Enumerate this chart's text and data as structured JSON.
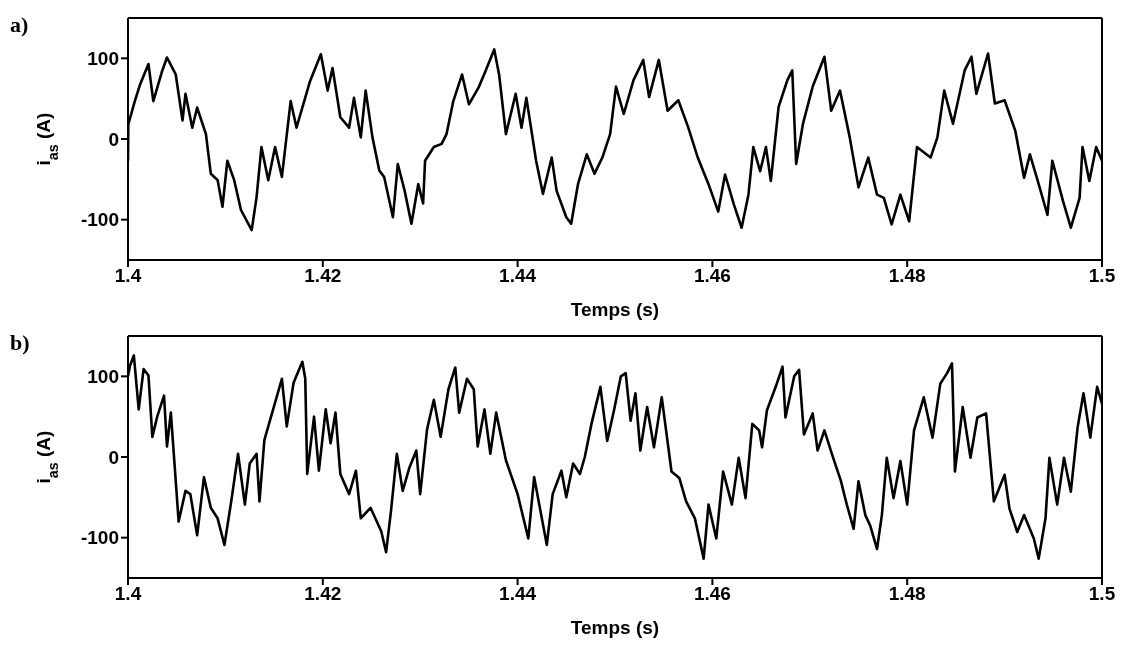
{
  "chart_data": [
    {
      "type": "line",
      "title": "a)",
      "xlabel": "Temps (s)",
      "ylabel": "i$_{as}$ (A)",
      "xlim": [
        1.4,
        1.5
      ],
      "xticks": [
        1.4,
        1.42,
        1.44,
        1.46,
        1.48,
        1.5
      ],
      "ylim": [
        -150,
        150
      ],
      "yticks": [
        -100,
        0,
        100
      ],
      "marker": "none",
      "line_style": "solid",
      "series": [
        {
          "color": "#000000",
          "x": [
            1.4,
            1.40003,
            1.4007,
            1.40125,
            1.4021,
            1.4026,
            1.4035,
            1.404,
            1.4049,
            1.4056,
            1.4059,
            1.4066,
            1.4071,
            1.408,
            1.4085,
            1.4092,
            1.4097,
            1.4102,
            1.4109,
            1.4116,
            1.4127,
            1.4132,
            1.4137,
            1.4144,
            1.4151,
            1.4158,
            1.4167,
            1.4173,
            1.4187,
            1.4198,
            1.4205,
            1.421,
            1.4218,
            1.4227,
            1.4232,
            1.4239,
            1.4244,
            1.4251,
            1.4258,
            1.4263,
            1.4272,
            1.4277,
            1.4284,
            1.4291,
            1.4298,
            1.4303,
            1.4305,
            1.4314,
            1.4322,
            1.4327,
            1.4334,
            1.4343,
            1.435,
            1.436,
            1.4367,
            1.4376,
            1.4381,
            1.4388,
            1.4398,
            1.4404,
            1.4409,
            1.4419,
            1.4426,
            1.4435,
            1.444,
            1.445,
            1.4455,
            1.4462,
            1.4471,
            1.4479,
            1.4487,
            1.4495,
            1.4501,
            1.4509,
            1.4519,
            1.4529,
            1.4535,
            1.4545,
            1.4554,
            1.4565,
            1.4575,
            1.4585,
            1.4596,
            1.4606,
            1.4613,
            1.4622,
            1.463,
            1.4637,
            1.4642,
            1.4649,
            1.4655,
            1.466,
            1.4668,
            1.4677,
            1.4682,
            1.4686,
            1.4693,
            1.4703,
            1.4715,
            1.4722,
            1.4731,
            1.4741,
            1.475,
            1.476,
            1.4769,
            1.4776,
            1.4784,
            1.4793,
            1.4802,
            1.481,
            1.4824,
            1.4831,
            1.4838,
            1.4847,
            1.4859,
            1.4866,
            1.4871,
            1.4883,
            1.489,
            1.49,
            1.4911,
            1.492,
            1.4926,
            1.4935,
            1.4944,
            1.4949,
            1.496,
            1.4968,
            1.4977,
            1.498,
            1.4987,
            1.4994,
            1.5
          ],
          "values": [
            -27,
            18,
            47,
            68,
            93,
            47,
            84,
            101,
            80,
            23,
            56,
            14,
            39,
            6,
            -43,
            -51,
            -84,
            -27,
            -51,
            -88,
            -113,
            -72,
            -10,
            -51,
            -10,
            -47,
            47,
            14,
            72,
            105,
            60,
            88,
            27,
            14,
            51,
            2,
            60,
            2,
            -39,
            -47,
            -97,
            -31,
            -64,
            -105,
            -56,
            -80,
            -27,
            -10,
            -6,
            6,
            47,
            80,
            43,
            64,
            84,
            111,
            80,
            6,
            56,
            14,
            51,
            -27,
            -68,
            -23,
            -64,
            -97,
            -105,
            -56,
            -19,
            -43,
            -23,
            6,
            65,
            31,
            73,
            98,
            52,
            98,
            35,
            48,
            15,
            -23,
            -56,
            -90,
            -44,
            -81,
            -110,
            -69,
            -10,
            -40,
            -10,
            -52,
            40,
            73,
            85,
            -31,
            19,
            65,
            102,
            35,
            60,
            2,
            -60,
            -23,
            -69,
            -73,
            -106,
            -69,
            -102,
            -10,
            -23,
            2,
            60,
            19,
            85,
            102,
            56,
            106,
            44,
            48,
            10,
            -48,
            -19,
            -56,
            -94,
            -27,
            -77,
            -110,
            -73,
            -10,
            -52,
            -10,
            -27
          ]
        }
      ]
    },
    {
      "type": "line",
      "title": "b)",
      "xlabel": "Temps (s)",
      "ylabel": "i$_{as}$ (A)",
      "xlim": [
        1.4,
        1.5
      ],
      "xticks": [
        1.4,
        1.42,
        1.44,
        1.46,
        1.48,
        1.5
      ],
      "ylim": [
        -150,
        150
      ],
      "yticks": [
        -100,
        0,
        100
      ],
      "marker": "none",
      "line_style": "solid",
      "series": [
        {
          "color": "#000000",
          "x": [
            1.4,
            1.4002,
            1.4006,
            1.4011,
            1.4016,
            1.4021,
            1.4025,
            1.403,
            1.4037,
            1.404,
            1.4044,
            1.4052,
            1.4059,
            1.4064,
            1.4071,
            1.4078,
            1.4085,
            1.4092,
            1.4099,
            1.4106,
            1.4113,
            1.412,
            1.4125,
            1.4132,
            1.4135,
            1.414,
            1.4149,
            1.4158,
            1.4163,
            1.417,
            1.4179,
            1.4182,
            1.4184,
            1.4191,
            1.4196,
            1.4203,
            1.4208,
            1.4213,
            1.4218,
            1.4227,
            1.4234,
            1.4239,
            1.4249,
            1.426,
            1.4265,
            1.427,
            1.4276,
            1.4282,
            1.4289,
            1.4296,
            1.43,
            1.4307,
            1.4314,
            1.4321,
            1.4329,
            1.4336,
            1.434,
            1.4348,
            1.4355,
            1.4359,
            1.4366,
            1.4372,
            1.4378,
            1.4388,
            1.44,
            1.4411,
            1.4417,
            1.443,
            1.4436,
            1.4445,
            1.445,
            1.4457,
            1.4464,
            1.4469,
            1.4476,
            1.4485,
            1.4492,
            1.4499,
            1.4506,
            1.4511,
            1.4516,
            1.4521,
            1.4526,
            1.4533,
            1.454,
            1.4548,
            1.4558,
            1.4566,
            1.4573,
            1.4582,
            1.4591,
            1.4596,
            1.4604,
            1.4611,
            1.462,
            1.4627,
            1.4634,
            1.4641,
            1.4648,
            1.4651,
            1.4656,
            1.4665,
            1.4672,
            1.4675,
            1.4684,
            1.4689,
            1.4694,
            1.4703,
            1.4708,
            1.4715,
            1.4724,
            1.4732,
            1.4738,
            1.4745,
            1.475,
            1.4757,
            1.4762,
            1.4769,
            1.4774,
            1.4779,
            1.4786,
            1.4793,
            1.48,
            1.4807,
            1.4817,
            1.4826,
            1.4834,
            1.4841,
            1.4846,
            1.4849,
            1.4857,
            1.4865,
            1.4872,
            1.4881,
            1.4889,
            1.49,
            1.4905,
            1.4913,
            1.492,
            1.493,
            1.4935,
            1.4942,
            1.4946,
            1.4954,
            1.4961,
            1.4968,
            1.4975,
            1.4981,
            1.4988,
            1.4995,
            1.5
          ],
          "values": [
            100,
            113,
            126,
            59,
            109,
            101,
            25,
            50,
            76,
            13,
            55,
            -80,
            -42,
            -46,
            -97,
            -25,
            -63,
            -76,
            -109,
            -55,
            4,
            -59,
            -8,
            4,
            -55,
            21,
            59,
            97,
            38,
            92,
            118,
            97,
            -21,
            50,
            -17,
            59,
            17,
            55,
            -21,
            -46,
            -17,
            -76,
            -63,
            -92,
            -118,
            -67,
            4,
            -42,
            -13,
            8,
            -46,
            34,
            71,
            25,
            84,
            111,
            55,
            97,
            84,
            13,
            59,
            4,
            55,
            -4,
            -46,
            -101,
            -25,
            -109,
            -46,
            -17,
            -50,
            -8,
            -21,
            0,
            42,
            87,
            20,
            58,
            100,
            104,
            45,
            79,
            8,
            62,
            12,
            74,
            -18,
            -26,
            -55,
            -76,
            -126,
            -59,
            -101,
            -18,
            -59,
            -1,
            -51,
            41,
            33,
            12,
            58,
            87,
            112,
            49,
            100,
            108,
            28,
            54,
            8,
            33,
            -1,
            -30,
            -59,
            -89,
            -30,
            -72,
            -85,
            -114,
            -72,
            -1,
            -51,
            -5,
            -59,
            33,
            74,
            24,
            91,
            104,
            116,
            -18,
            62,
            -1,
            49,
            54,
            -55,
            -22,
            -64,
            -93,
            -72,
            -101,
            -126,
            -76,
            -1,
            -59,
            -1,
            -43,
            37,
            79,
            24,
            87,
            66
          ]
        }
      ]
    }
  ]
}
